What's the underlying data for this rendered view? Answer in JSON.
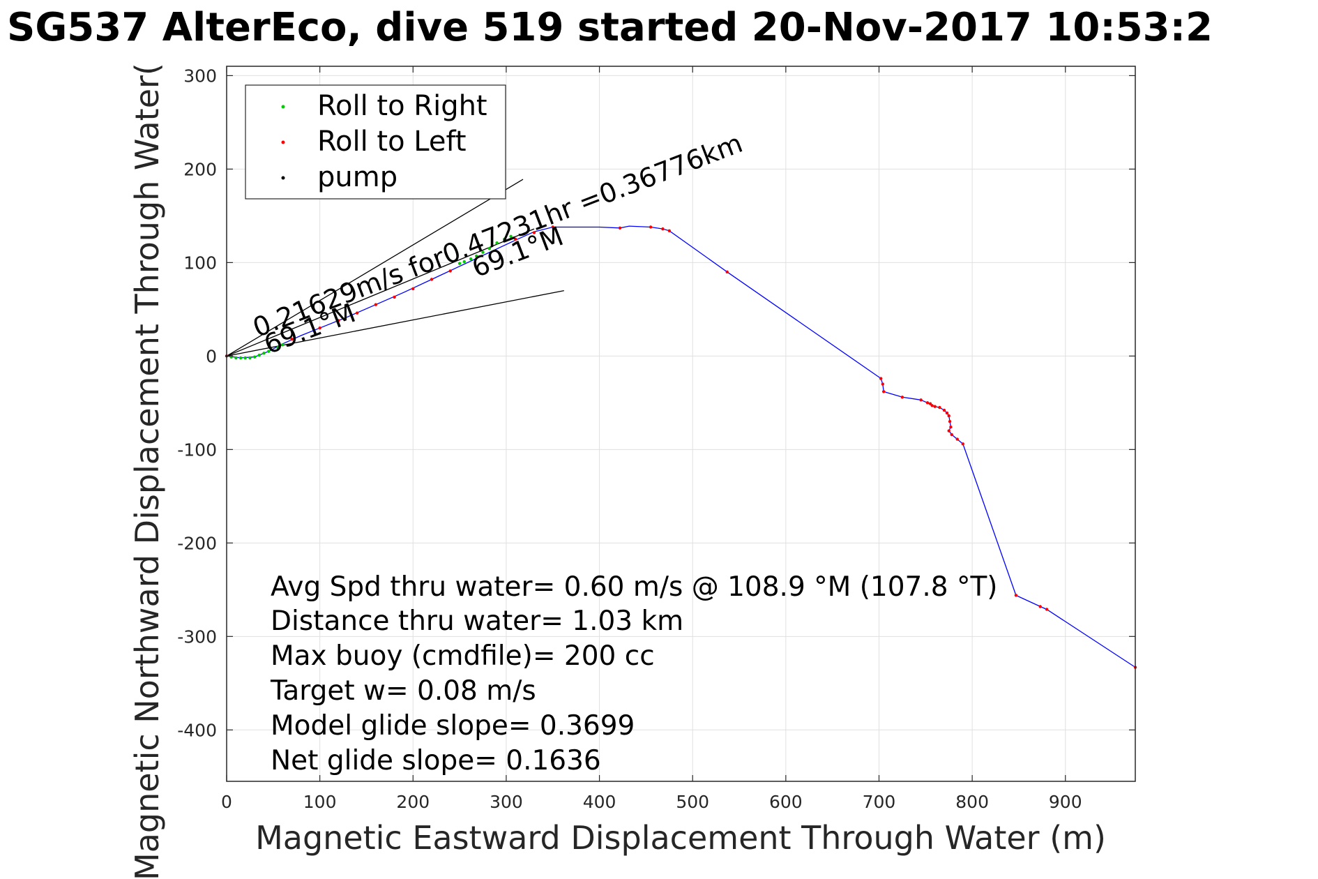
{
  "chart_data": {
    "type": "scatter",
    "title": "SG537 AlterEco, dive 519 started 20-Nov-2017 10:53:2",
    "xlabel": "Magnetic Eastward Displacement Through Water (m)",
    "ylabel": "Magnetic Northward Displacement Through Water(",
    "xlim": [
      0,
      975
    ],
    "ylim": [
      -455,
      310
    ],
    "x_ticks": [
      0,
      100,
      200,
      300,
      400,
      500,
      600,
      700,
      800,
      900
    ],
    "y_ticks": [
      300,
      200,
      100,
      0,
      -100,
      -200,
      -300,
      -400
    ],
    "x_tick_labels": [
      "0",
      "100",
      "200",
      "300",
      "400",
      "500",
      "600",
      "700",
      "800",
      "900"
    ],
    "y_tick_labels": [
      "300",
      "200",
      "100",
      "0",
      "-100",
      "-200",
      "-300",
      "-400"
    ],
    "grid": true,
    "legend_position": "top-left",
    "legend": [
      {
        "label": "Roll to Right",
        "color": "#00cc00"
      },
      {
        "label": "Roll to Left",
        "color": "#ff0000"
      },
      {
        "label": "pump",
        "color": "#000000"
      }
    ],
    "colors": {
      "track": "#0000ff",
      "roll_right": "#00cc00",
      "roll_left": "#ff0000",
      "pump": "#000000",
      "current_lines": "#000000",
      "grid": "#e0e0e0"
    },
    "series": [
      {
        "name": "track",
        "type": "line",
        "points": [
          [
            0,
            0
          ],
          [
            15,
            -2
          ],
          [
            30,
            -1
          ],
          [
            45,
            5
          ],
          [
            60,
            13
          ],
          [
            80,
            22
          ],
          [
            100,
            30
          ],
          [
            130,
            42
          ],
          [
            160,
            55
          ],
          [
            190,
            68
          ],
          [
            220,
            82
          ],
          [
            250,
            96
          ],
          [
            280,
            110
          ],
          [
            310,
            124
          ],
          [
            330,
            133
          ],
          [
            350,
            138
          ],
          [
            370,
            138
          ],
          [
            400,
            138
          ],
          [
            422,
            137
          ],
          [
            432,
            139
          ],
          [
            455,
            138
          ],
          [
            468,
            136
          ],
          [
            475,
            134
          ],
          [
            537,
            90
          ],
          [
            702,
            -24
          ],
          [
            704,
            -30
          ],
          [
            705,
            -38
          ],
          [
            725,
            -44
          ],
          [
            745,
            -47
          ],
          [
            752,
            -50
          ],
          [
            757,
            -53
          ],
          [
            760,
            -54
          ],
          [
            765,
            -55
          ],
          [
            770,
            -58
          ],
          [
            773,
            -61
          ],
          [
            775,
            -64
          ],
          [
            776,
            -70
          ],
          [
            777,
            -76
          ],
          [
            775,
            -80
          ],
          [
            778,
            -84
          ],
          [
            784,
            -89
          ],
          [
            790,
            -94
          ],
          [
            847,
            -256
          ],
          [
            873,
            -268
          ],
          [
            880,
            -271
          ],
          [
            975,
            -333
          ]
        ]
      },
      {
        "name": "Roll to Right",
        "type": "points",
        "points": [
          [
            5,
            -1
          ],
          [
            10,
            -2
          ],
          [
            15,
            -2
          ],
          [
            20,
            -2
          ],
          [
            25,
            -2
          ],
          [
            30,
            -1
          ],
          [
            35,
            1
          ],
          [
            40,
            3
          ],
          [
            45,
            5
          ],
          [
            55,
            9
          ],
          [
            60,
            12
          ],
          [
            250,
            99
          ],
          [
            255,
            101
          ],
          [
            262,
            104
          ],
          [
            268,
            107
          ],
          [
            275,
            111
          ],
          [
            282,
            115
          ],
          [
            290,
            121
          ],
          [
            298,
            125
          ],
          [
            305,
            128
          ]
        ]
      },
      {
        "name": "Roll to Left",
        "type": "points",
        "points": [
          [
            0,
            0
          ],
          [
            70,
            18
          ],
          [
            100,
            30
          ],
          [
            120,
            38
          ],
          [
            140,
            46
          ],
          [
            160,
            55
          ],
          [
            180,
            63
          ],
          [
            200,
            72
          ],
          [
            220,
            82
          ],
          [
            240,
            91
          ],
          [
            310,
            125
          ],
          [
            330,
            132
          ],
          [
            350,
            138
          ],
          [
            422,
            137
          ],
          [
            455,
            138
          ],
          [
            468,
            136
          ],
          [
            475,
            134
          ],
          [
            537,
            90
          ],
          [
            702,
            -24
          ],
          [
            704,
            -30
          ],
          [
            705,
            -38
          ],
          [
            725,
            -44
          ],
          [
            745,
            -47
          ],
          [
            752,
            -50
          ],
          [
            755,
            -51
          ],
          [
            757,
            -53
          ],
          [
            760,
            -54
          ],
          [
            765,
            -55
          ],
          [
            770,
            -58
          ],
          [
            773,
            -61
          ],
          [
            775,
            -64
          ],
          [
            776,
            -70
          ],
          [
            777,
            -76
          ],
          [
            775,
            -80
          ],
          [
            778,
            -84
          ],
          [
            784,
            -89
          ],
          [
            790,
            -94
          ],
          [
            847,
            -256
          ],
          [
            873,
            -268
          ],
          [
            880,
            -271
          ],
          [
            975,
            -333
          ]
        ]
      },
      {
        "name": "pump",
        "type": "points",
        "points": [
          [
            0,
            0
          ]
        ]
      },
      {
        "name": "current-line-upper",
        "type": "line",
        "points": [
          [
            0,
            0
          ],
          [
            318,
            189
          ]
        ]
      },
      {
        "name": "current-line-lower",
        "type": "line",
        "points": [
          [
            0,
            0
          ],
          [
            362,
            70
          ]
        ]
      },
      {
        "name": "current-line-mid",
        "type": "line",
        "points": [
          [
            0,
            0
          ],
          [
            330,
            136
          ]
        ]
      }
    ],
    "annotations": [
      {
        "text": "0.21629m/s for0.47231hr =0.36776km",
        "x": 33,
        "y": 20,
        "angle": -21
      },
      {
        "text": "69.1°M",
        "x": 45,
        "y": 2,
        "angle": -21
      },
      {
        "text": "69.1°M",
        "x": 268,
        "y": 84,
        "angle": -21
      }
    ],
    "stats": [
      "Avg Spd thru water=  0.60 m/s @ 108.9 °M (107.8 °T)",
      "Distance thru water=  1.03 km",
      "Max buoy (cmdfile)= 200 cc",
      "Target w= 0.08 m/s",
      "Model glide slope= 0.3699",
      "Net glide slope= 0.1636"
    ]
  }
}
